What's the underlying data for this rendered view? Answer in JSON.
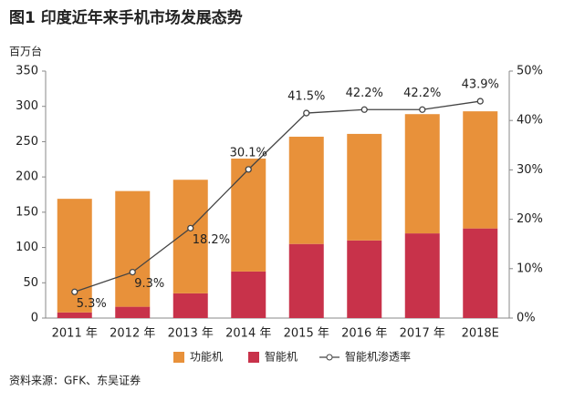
{
  "chart_data": {
    "type": "bar-line",
    "title": "图1 印度近年来手机市场发展态势",
    "ylabel": "百万台",
    "source": "资料来源：GFK、东吴证券",
    "categories": [
      "2011 年",
      "2012 年",
      "2013 年",
      "2014 年",
      "2015 年",
      "2016 年",
      "2017 年",
      "2018E"
    ],
    "series": [
      {
        "name": "功能机",
        "color": "#e8913a",
        "type": "bar",
        "values": [
          161,
          164,
          161,
          160,
          152,
          151,
          169,
          166
        ]
      },
      {
        "name": "智能机",
        "color": "#c8324a",
        "type": "bar",
        "values": [
          8,
          16,
          35,
          66,
          105,
          110,
          120,
          127
        ]
      },
      {
        "name": "智能机渗透率",
        "color": "#444444",
        "type": "line",
        "axis": "y2",
        "values": [
          5.3,
          9.3,
          18.2,
          30.1,
          41.5,
          42.2,
          42.2,
          43.9
        ],
        "value_labels": [
          "5.3%",
          "9.3%",
          "18.2%",
          "30.1%",
          "41.5%",
          "42.2%",
          "42.2%",
          "43.9%"
        ]
      }
    ],
    "ylim": [
      0,
      350
    ],
    "yticks": [
      0,
      50,
      100,
      150,
      200,
      250,
      300,
      350
    ],
    "y2lim": [
      0,
      50
    ],
    "y2ticks": [
      {
        "value": 0,
        "label": "0%"
      },
      {
        "value": 10,
        "label": "10%"
      },
      {
        "value": 20,
        "label": "20%"
      },
      {
        "value": 30,
        "label": "30%"
      },
      {
        "value": 40,
        "label": "40%"
      },
      {
        "value": 50,
        "label": "50%"
      }
    ],
    "legend": "bottom"
  }
}
